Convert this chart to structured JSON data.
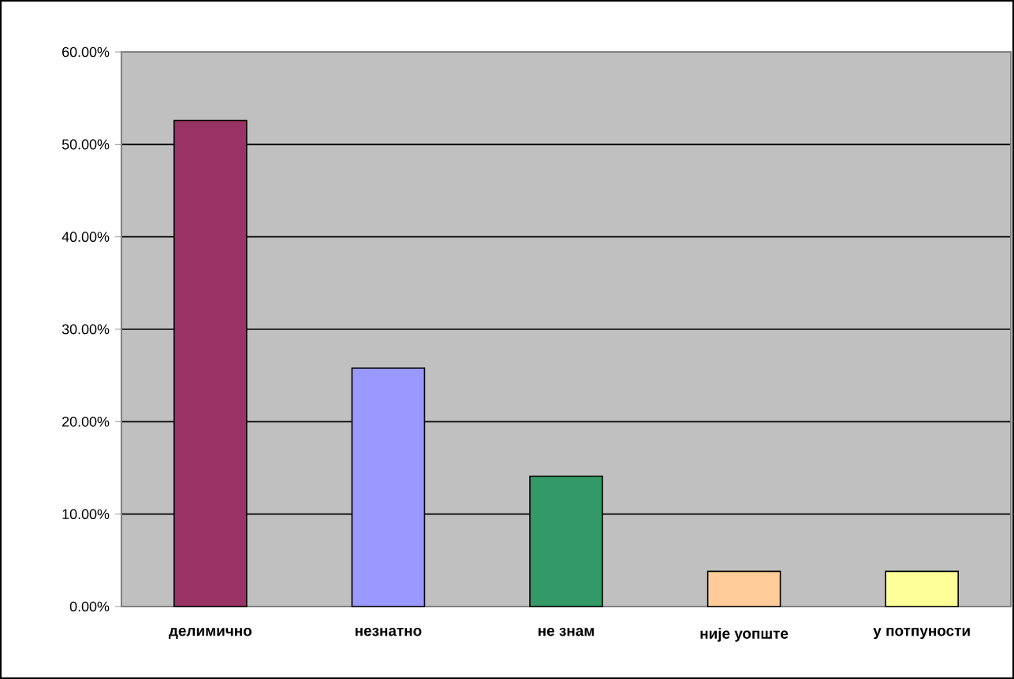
{
  "chart_data": {
    "type": "bar",
    "categories": [
      "делимично",
      "незнатно",
      "не знам",
      "није уопште",
      "у потпуности"
    ],
    "values": [
      52.6,
      25.8,
      14.1,
      3.8,
      3.8
    ],
    "colors": [
      "#993366",
      "#9999ff",
      "#339966",
      "#ffcc99",
      "#ffff99"
    ],
    "ylim": [
      0,
      60
    ],
    "yticks": [
      {
        "value": 0,
        "label": "0.00%"
      },
      {
        "value": 10,
        "label": "10.00%"
      },
      {
        "value": 20,
        "label": "20.00%"
      },
      {
        "value": 30,
        "label": "30.00%"
      },
      {
        "value": 40,
        "label": "40.00%"
      },
      {
        "value": 50,
        "label": "50.00%"
      },
      {
        "value": 60,
        "label": "60.00%"
      }
    ],
    "grid": "y"
  }
}
